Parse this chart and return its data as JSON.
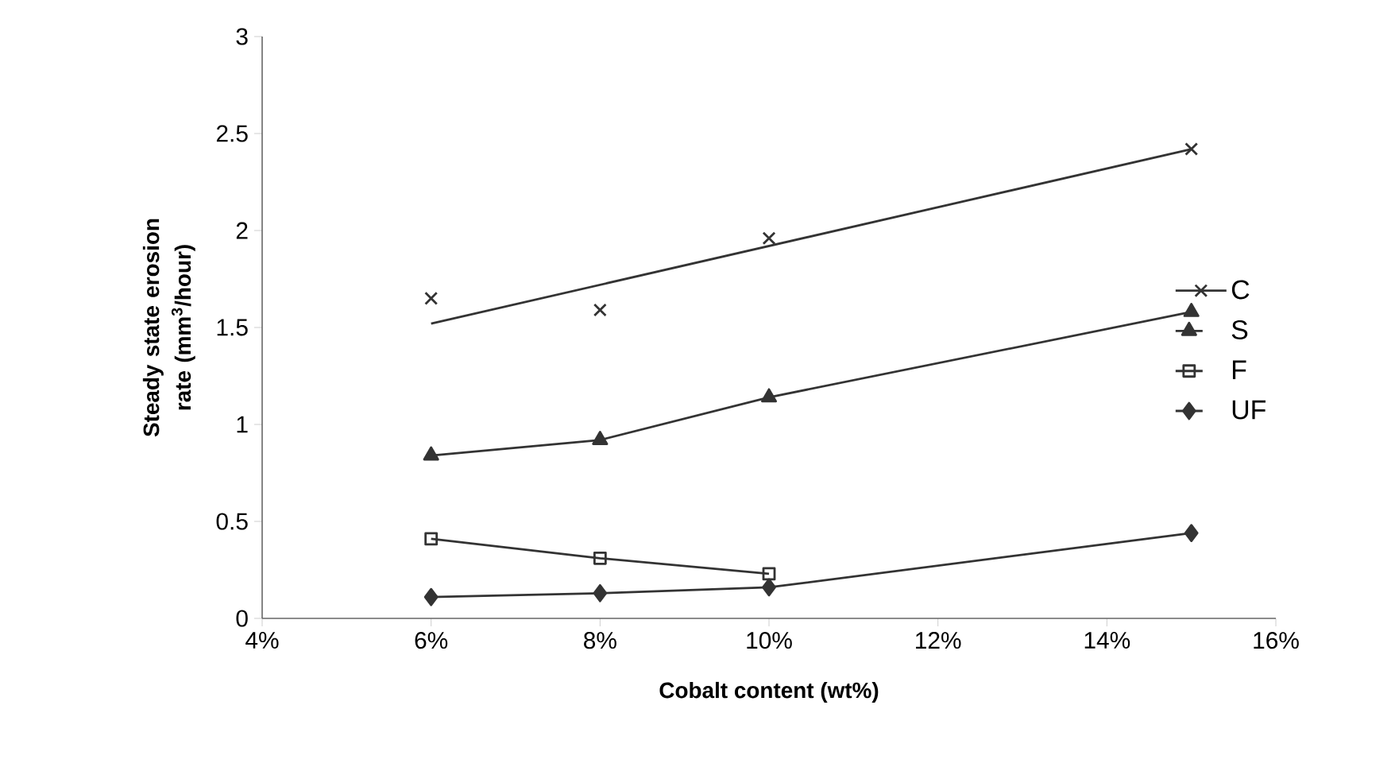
{
  "chart_data": {
    "type": "line",
    "xlabel": "Cobalt content (wt%)",
    "ylabel": "Steady state erosion rate (mm$^{3}$/hour)",
    "xlim": [
      4,
      16
    ],
    "xticks": [
      {
        "value": 4,
        "label": "4%"
      },
      {
        "value": 6,
        "label": "6%"
      },
      {
        "value": 8,
        "label": "8%"
      },
      {
        "value": 10,
        "label": "10%"
      },
      {
        "value": 12,
        "label": "12%"
      },
      {
        "value": 14,
        "label": "14%"
      },
      {
        "value": 16,
        "label": "16%"
      }
    ],
    "ylim": [
      0,
      3
    ],
    "yticks": [
      0,
      0.5,
      1,
      1.5,
      2,
      2.5,
      3
    ],
    "legend": "right",
    "grid": false,
    "series": [
      {
        "name": "C",
        "type": "scatter",
        "marker": "cross",
        "color": "#333333",
        "x": [
          6,
          8,
          10,
          15
        ],
        "values": [
          1.65,
          1.59,
          1.96,
          2.42
        ]
      },
      {
        "type": "line",
        "marker": "none",
        "color": "#333333",
        "x": [
          6,
          15
        ],
        "values": [
          1.52,
          2.42
        ]
      },
      {
        "name": "S",
        "type": "line",
        "marker": "triangle",
        "color": "#333333",
        "x": [
          6,
          8,
          10,
          15
        ],
        "values": [
          0.84,
          0.92,
          1.14,
          1.58
        ]
      },
      {
        "name": "F",
        "type": "line",
        "marker": "square",
        "color": "#333333",
        "x": [
          6,
          8,
          10
        ],
        "values": [
          0.41,
          0.31,
          0.23
        ]
      },
      {
        "name": "UF",
        "type": "line",
        "marker": "diamond",
        "color": "#333333",
        "x": [
          6,
          8,
          10,
          15
        ],
        "values": [
          0.11,
          0.13,
          0.16,
          0.44
        ]
      }
    ]
  }
}
